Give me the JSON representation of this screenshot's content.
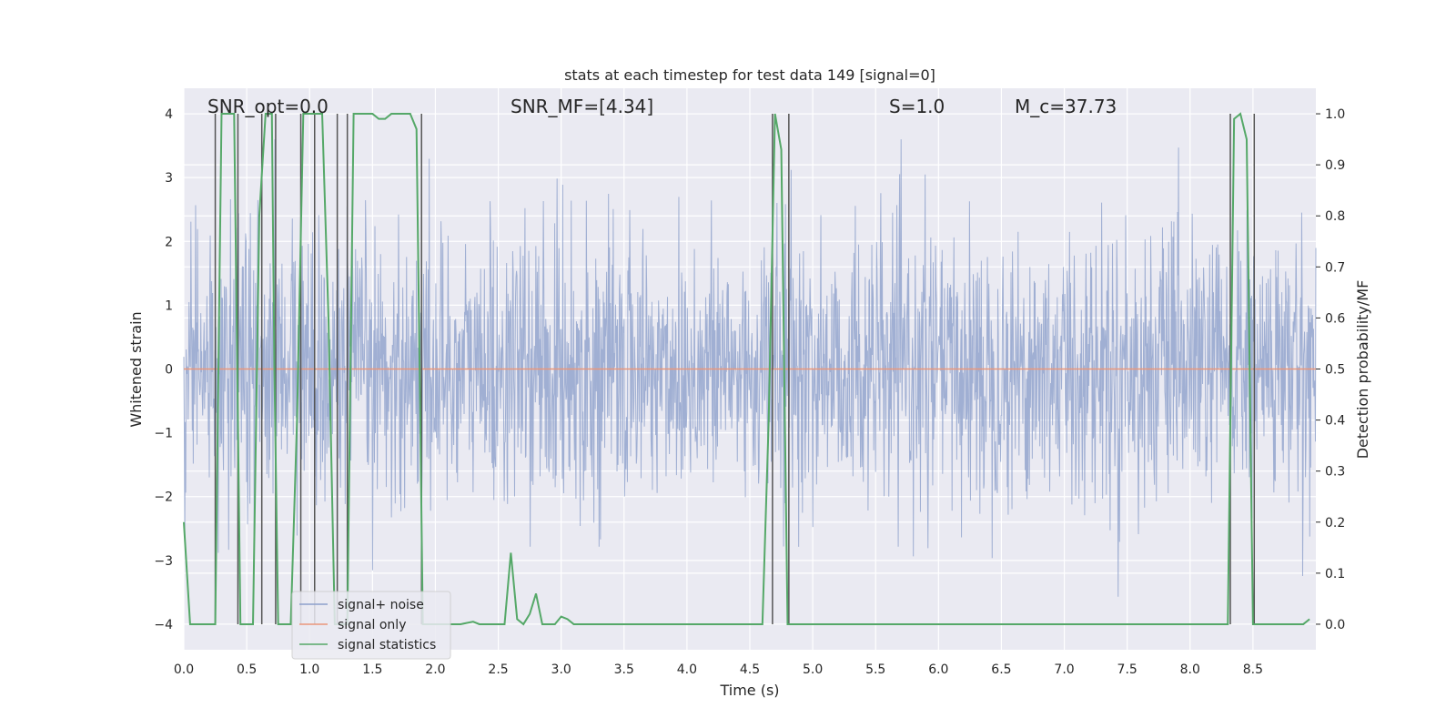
{
  "chart_data": {
    "type": "line",
    "title": "stats at each timestep for test data 149 [signal=0]",
    "xlabel": "Time (s)",
    "ylabel_left": "Whitened strain",
    "ylabel_right": "Detection probability/MF",
    "xlim": [
      0.0,
      9.0
    ],
    "ylim_left": [
      -4.4,
      4.4
    ],
    "ylim_right": [
      -0.05,
      1.05
    ],
    "xticks": [
      "0.0",
      "0.5",
      "1.0",
      "1.5",
      "2.0",
      "2.5",
      "3.0",
      "3.5",
      "4.0",
      "4.5",
      "5.0",
      "5.5",
      "6.0",
      "6.5",
      "7.0",
      "7.5",
      "8.0",
      "8.5"
    ],
    "yticks_left": [
      "4",
      "3",
      "2",
      "1",
      "0",
      "−1",
      "−2",
      "−3",
      "−4"
    ],
    "yticks_right": [
      "1.0",
      "0.9",
      "0.8",
      "0.7",
      "0.6",
      "0.5",
      "0.4",
      "0.3",
      "0.2",
      "0.1",
      "0.0"
    ],
    "grid": true,
    "legend_position": "lower-left",
    "annotations": {
      "snr_opt": "SNR_opt=0.0",
      "snr_mf": "SNR_MF=[4.34]",
      "s": "S=1.0",
      "mc": "M_c=37.73"
    },
    "series": [
      {
        "name": "signal+ noise",
        "axis": "left",
        "color": "#8da0cb",
        "description_values": "noise band roughly within [-2.5, 2.5] with spikes to about ±3.6"
      },
      {
        "name": "signal only",
        "axis": "left",
        "color": "#e9967a",
        "x": [
          0.0,
          9.0
        ],
        "y": [
          0.0,
          0.0
        ]
      },
      {
        "name": "signal statistics",
        "axis": "right",
        "color": "#55a868",
        "x": [
          0.0,
          0.05,
          0.25,
          0.3,
          0.4,
          0.45,
          0.48,
          0.55,
          0.6,
          0.65,
          0.7,
          0.72,
          0.75,
          0.8,
          0.85,
          0.9,
          0.95,
          1.0,
          1.05,
          1.1,
          1.15,
          1.2,
          1.25,
          1.3,
          1.35,
          1.4,
          1.5,
          1.55,
          1.6,
          1.65,
          1.7,
          1.8,
          1.85,
          1.88,
          1.9,
          1.95,
          2.0,
          2.1,
          2.2,
          2.3,
          2.35,
          2.4,
          2.5,
          2.55,
          2.6,
          2.65,
          2.7,
          2.75,
          2.8,
          2.85,
          2.9,
          2.95,
          3.0,
          3.05,
          3.1,
          3.15,
          3.2,
          3.25,
          3.5,
          4.0,
          4.5,
          4.6,
          4.65,
          4.7,
          4.75,
          4.8,
          4.85,
          4.9,
          5.0,
          5.2,
          5.3,
          5.35,
          5.5,
          6.0,
          6.5,
          7.0,
          7.05,
          7.5,
          8.0,
          8.3,
          8.35,
          8.4,
          8.45,
          8.5,
          8.55,
          8.6,
          8.7,
          8.8,
          8.9,
          8.95
        ],
        "y": [
          0.2,
          0.0,
          0.0,
          1.0,
          1.0,
          0.0,
          0.0,
          0.0,
          0.8,
          1.0,
          1.0,
          0.5,
          0.0,
          0.0,
          0.0,
          0.4,
          1.0,
          1.0,
          1.0,
          1.0,
          0.6,
          0.0,
          0.0,
          0.0,
          1.0,
          1.0,
          1.0,
          0.99,
          0.99,
          1.0,
          1.0,
          1.0,
          0.97,
          0.4,
          0.0,
          0.0,
          0.0,
          0.0,
          0.0,
          0.005,
          0.0,
          0.0,
          0.0,
          0.0,
          0.14,
          0.01,
          0.0,
          0.02,
          0.06,
          0.0,
          0.0,
          0.0,
          0.015,
          0.01,
          0.0,
          0.0,
          0.0,
          0.0,
          0.0,
          0.0,
          0.0,
          0.0,
          0.4,
          1.0,
          0.93,
          0.0,
          0.0,
          0.0,
          0.0,
          0.0,
          0.0,
          0.0,
          0.0,
          0.0,
          0.0,
          0.0,
          0.0,
          0.0,
          0.0,
          0.0,
          0.99,
          1.0,
          0.95,
          0.0,
          0.0,
          0.0,
          0.0,
          0.0,
          0.0,
          0.01
        ]
      }
    ],
    "vertical_markers_x": [
      0.25,
      0.43,
      0.62,
      0.73,
      0.93,
      1.04,
      1.22,
      1.3,
      1.89,
      4.68,
      4.81,
      8.32,
      8.51
    ]
  }
}
